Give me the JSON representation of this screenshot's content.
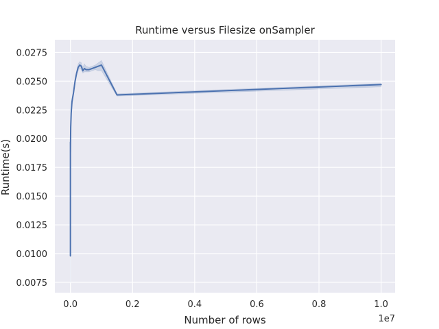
{
  "chart_data": {
    "type": "line",
    "title": "Runtime versus Filesize onSampler",
    "xlabel": "Number of rows",
    "ylabel": "Runtime(s)",
    "x_offset_label": "1e7",
    "xlim": [
      -500000,
      10450000
    ],
    "ylim": [
      0.0066,
      0.0286
    ],
    "x_ticks": [
      0,
      2000000,
      4000000,
      6000000,
      8000000,
      10000000
    ],
    "x_tick_labels": [
      "0.0",
      "0.2",
      "0.4",
      "0.6",
      "0.8",
      "1.0"
    ],
    "y_ticks": [
      0.0075,
      0.01,
      0.0125,
      0.015,
      0.0175,
      0.02,
      0.0225,
      0.025,
      0.0275
    ],
    "y_tick_labels": [
      "0.0075",
      "0.0100",
      "0.0125",
      "0.0150",
      "0.0175",
      "0.0200",
      "0.0225",
      "0.0250",
      "0.0275"
    ],
    "grid": true,
    "series": [
      {
        "color": "#4c72b0",
        "band_color": "#4c72b0",
        "x": [
          0,
          10,
          100,
          1000,
          10000,
          25000,
          50000,
          100000,
          150000,
          200000,
          250000,
          300000,
          350000,
          400000,
          450000,
          500000,
          600000,
          700000,
          800000,
          900000,
          1000000,
          1500000,
          10000000
        ],
        "y": [
          0.0098,
          0.0155,
          0.0197,
          0.0188,
          0.021,
          0.0222,
          0.0232,
          0.024,
          0.025,
          0.0257,
          0.0262,
          0.0264,
          0.0263,
          0.0259,
          0.0261,
          0.026,
          0.026,
          0.0261,
          0.0262,
          0.0263,
          0.0264,
          0.0238,
          0.0247
        ],
        "band_lower": [
          0.0075,
          0.0148,
          0.019,
          0.018,
          0.0205,
          0.0218,
          0.0229,
          0.0238,
          0.0248,
          0.0255,
          0.0259,
          0.0261,
          0.026,
          0.0257,
          0.0258,
          0.0258,
          0.0258,
          0.0259,
          0.026,
          0.0259,
          0.0259,
          0.0237,
          0.0245
        ],
        "band_upper": [
          0.0275,
          0.0162,
          0.02,
          0.0196,
          0.0215,
          0.0226,
          0.0235,
          0.0242,
          0.0252,
          0.0259,
          0.0265,
          0.0267,
          0.0266,
          0.0262,
          0.0265,
          0.0263,
          0.0262,
          0.0263,
          0.0264,
          0.0266,
          0.0268,
          0.0239,
          0.0248
        ]
      }
    ]
  }
}
